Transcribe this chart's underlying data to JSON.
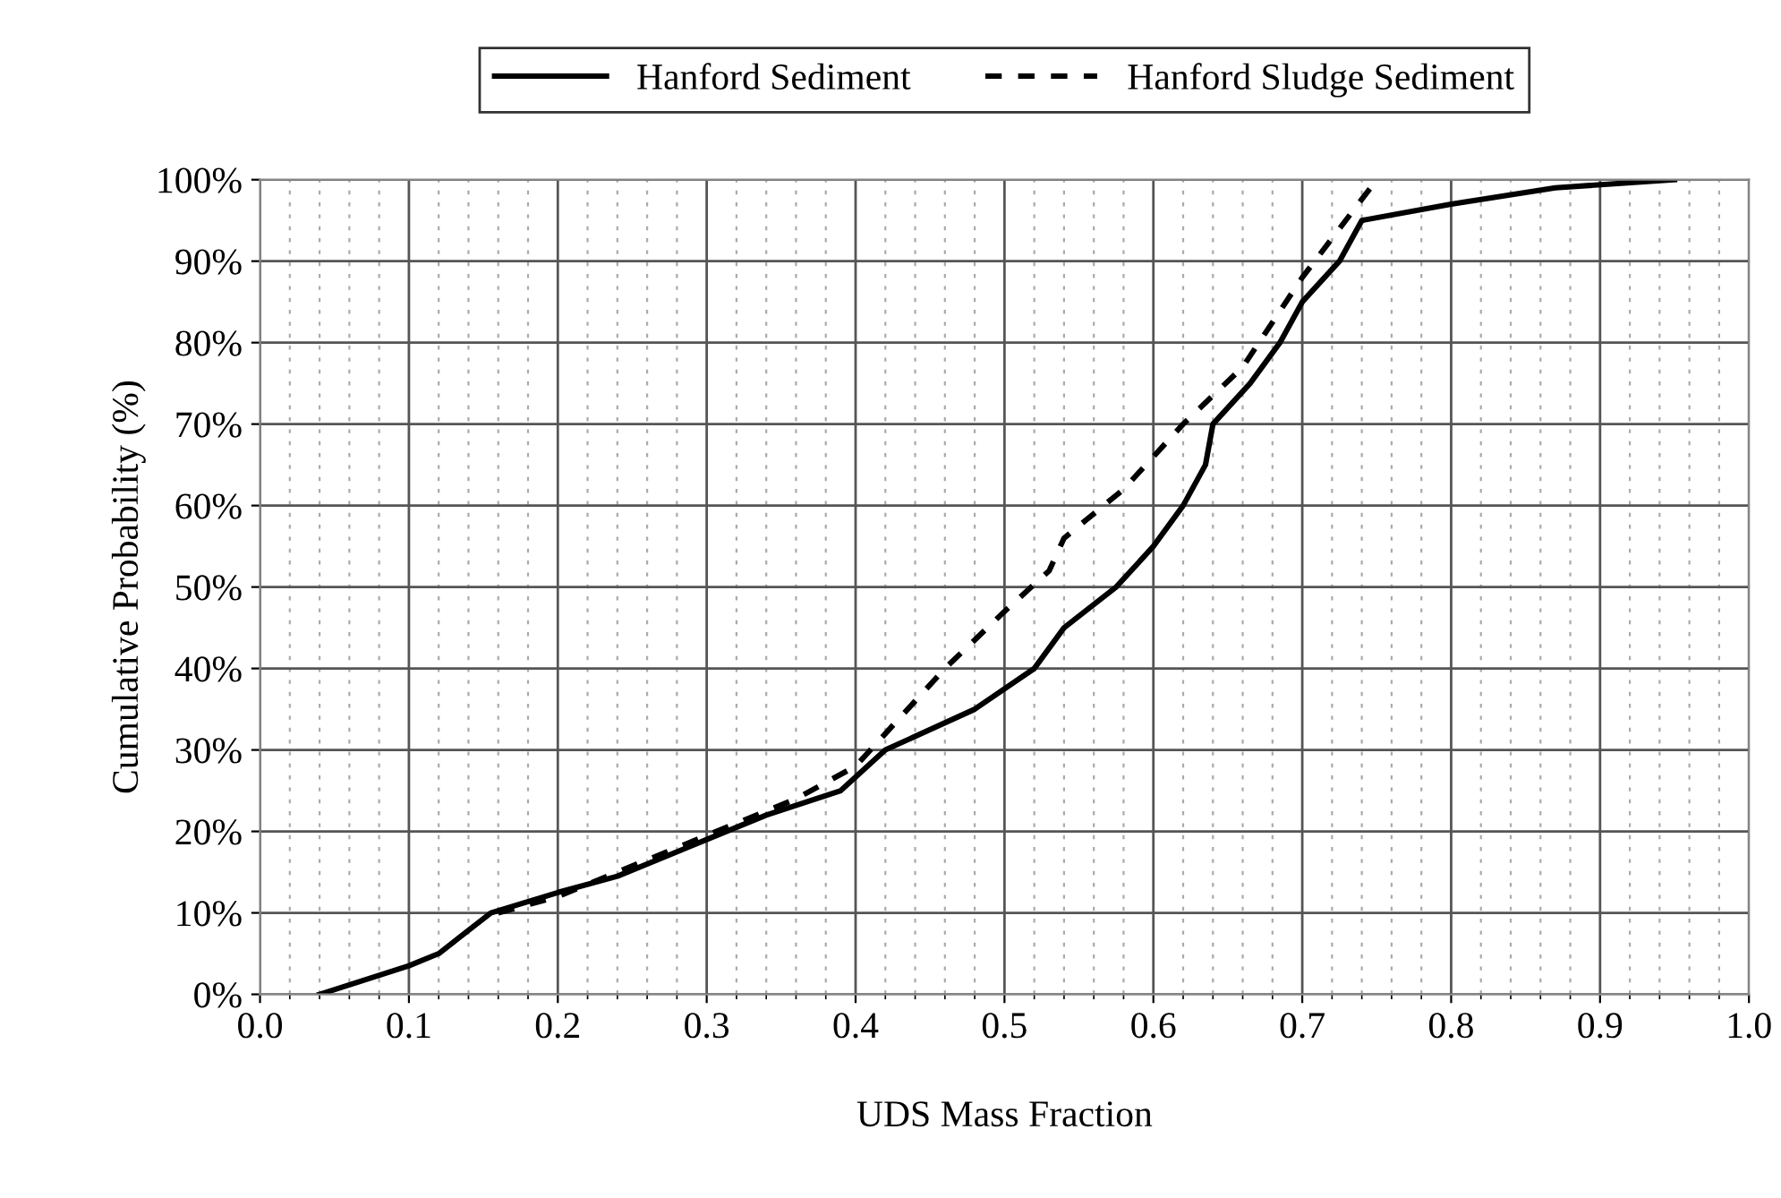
{
  "chart_data": {
    "type": "line",
    "xlabel": "UDS Mass Fraction",
    "ylabel": "Cumulative Probability (%)",
    "xlim": [
      0,
      1
    ],
    "ylim": [
      0,
      100
    ],
    "xticks": [
      {
        "value": 0,
        "label": "0.0"
      },
      {
        "value": 0.1,
        "label": "0.1"
      },
      {
        "value": 0.2,
        "label": "0.2"
      },
      {
        "value": 0.3,
        "label": "0.3"
      },
      {
        "value": 0.4,
        "label": "0.4"
      },
      {
        "value": 0.5,
        "label": "0.5"
      },
      {
        "value": 0.6,
        "label": "0.6"
      },
      {
        "value": 0.7,
        "label": "0.7"
      },
      {
        "value": 0.8,
        "label": "0.8"
      },
      {
        "value": 0.9,
        "label": "0.9"
      },
      {
        "value": 1,
        "label": "1.0"
      }
    ],
    "yticks": [
      {
        "value": 0,
        "label": "0%"
      },
      {
        "value": 10,
        "label": "10%"
      },
      {
        "value": 20,
        "label": "20%"
      },
      {
        "value": 30,
        "label": "30%"
      },
      {
        "value": 40,
        "label": "40%"
      },
      {
        "value": 50,
        "label": "50%"
      },
      {
        "value": 60,
        "label": "60%"
      },
      {
        "value": 70,
        "label": "70%"
      },
      {
        "value": 80,
        "label": "80%"
      },
      {
        "value": 90,
        "label": "90%"
      },
      {
        "value": 100,
        "label": "100%"
      }
    ],
    "grid": true,
    "legend": "top",
    "marker": "none",
    "series": [
      {
        "name": "Hanford Sediment",
        "color": "#000000",
        "line_style": "solid",
        "x": [
          0.04,
          0.1,
          0.12,
          0.155,
          0.2,
          0.24,
          0.3,
          0.34,
          0.39,
          0.42,
          0.48,
          0.52,
          0.54,
          0.575,
          0.6,
          0.62,
          0.635,
          0.64,
          0.665,
          0.685,
          0.7,
          0.725,
          0.74,
          0.8,
          0.87,
          0.95
        ],
        "values": [
          0,
          3.5,
          5,
          10,
          12.5,
          14.5,
          19,
          22,
          25,
          30,
          35,
          40,
          45,
          50,
          55,
          60,
          65,
          70,
          75,
          80,
          85,
          90,
          95,
          97,
          99,
          100
        ]
      },
      {
        "name": "Hanford Sludge Sediment",
        "color": "#000000",
        "line_style": "dashed",
        "x": [
          0.16,
          0.2,
          0.28,
          0.36,
          0.4,
          0.42,
          0.46,
          0.5,
          0.53,
          0.54,
          0.58,
          0.62,
          0.66,
          0.7,
          0.75
        ],
        "values": [
          10,
          12,
          18,
          24,
          28,
          32,
          40,
          47,
          52,
          56,
          62,
          70,
          77,
          88,
          100
        ]
      }
    ]
  }
}
